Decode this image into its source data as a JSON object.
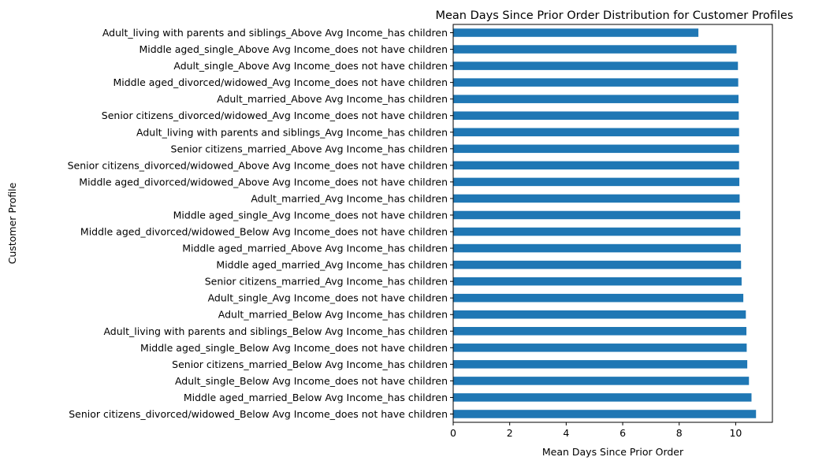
{
  "chart_data": {
    "type": "bar",
    "orientation": "horizontal",
    "title": "Mean Days Since Prior Order Distribution for Customer Profiles",
    "xlabel": "Mean Days Since Prior Order",
    "ylabel": "Customer Profile",
    "xlim": [
      0,
      11.3
    ],
    "xticks": [
      0,
      2,
      4,
      6,
      8,
      10
    ],
    "grid": false,
    "legend": "none",
    "bar_color": "#1f77b4",
    "categories": [
      "Adult_living with parents and siblings_Above Avg Income_has children",
      "Middle aged_single_Above Avg Income_does not have children",
      "Adult_single_Above Avg Income_does not have children",
      "Middle aged_divorced/widowed_Avg Income_does not have children",
      "Adult_married_Above Avg Income_has children",
      "Senior citizens_divorced/widowed_Avg Income_does not have children",
      "Adult_living with parents and siblings_Avg Income_has children",
      "Senior citizens_married_Above Avg Income_has children",
      "Senior citizens_divorced/widowed_Above Avg Income_does not have children",
      "Middle aged_divorced/widowed_Above Avg Income_does not have children",
      "Adult_married_Avg Income_has children",
      "Middle aged_single_Avg Income_does not have children",
      "Middle aged_divorced/widowed_Below Avg Income_does not have children",
      "Middle aged_married_Above Avg Income_has children",
      "Middle aged_married_Avg Income_has children",
      "Senior citizens_married_Avg Income_has children",
      "Adult_single_Avg Income_does not have children",
      "Adult_married_Below Avg Income_has children",
      "Adult_living with parents and siblings_Below Avg Income_has children",
      "Middle aged_single_Below Avg Income_does not have children",
      "Senior citizens_married_Below Avg Income_has children",
      "Adult_single_Below Avg Income_does not have children",
      "Middle aged_married_Below Avg Income_has children",
      "Senior citizens_divorced/widowed_Below Avg Income_does not have children"
    ],
    "values": [
      8.68,
      10.03,
      10.08,
      10.09,
      10.1,
      10.11,
      10.12,
      10.12,
      10.12,
      10.13,
      10.14,
      10.16,
      10.17,
      10.18,
      10.19,
      10.21,
      10.27,
      10.36,
      10.38,
      10.39,
      10.41,
      10.47,
      10.56,
      10.72
    ]
  }
}
